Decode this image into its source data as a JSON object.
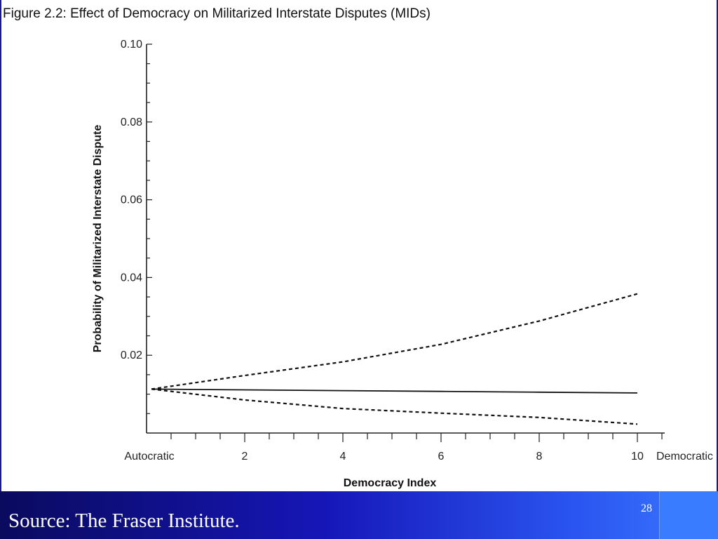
{
  "slide": {
    "source_text": "Source: The Fraser Institute.",
    "page_number": "28"
  },
  "chart_data": {
    "type": "line",
    "title": "Figure 2.2:  Effect of Democracy on Militarized Interstate Disputes (MIDs)",
    "xlabel": "Democracy Index",
    "ylabel": "Probability of Militarized Interstate Dispute",
    "xlim": [
      0,
      10
    ],
    "ylim": [
      0,
      0.1
    ],
    "x_ticks": [
      {
        "value": 0,
        "label": "Autocratic"
      },
      {
        "value": 2,
        "label": "2"
      },
      {
        "value": 4,
        "label": "4"
      },
      {
        "value": 6,
        "label": "6"
      },
      {
        "value": 8,
        "label": "8"
      },
      {
        "value": 10,
        "label": "10"
      }
    ],
    "x_end_label": "Democratic",
    "y_ticks": [
      {
        "value": 0.02,
        "label": "0.02"
      },
      {
        "value": 0.04,
        "label": "0.04"
      },
      {
        "value": 0.06,
        "label": "0.06"
      },
      {
        "value": 0.08,
        "label": "0.08"
      },
      {
        "value": 0.1,
        "label": "0.10"
      }
    ],
    "grid": false,
    "legend": "none",
    "series": [
      {
        "style": "solid",
        "x": [
          0.1,
          2,
          4,
          6,
          8,
          10
        ],
        "y": [
          0.0113,
          0.0111,
          0.0109,
          0.0107,
          0.0105,
          0.0103
        ]
      },
      {
        "style": "dashed",
        "x": [
          0.1,
          2,
          4,
          6,
          8,
          10
        ],
        "y": [
          0.0113,
          0.0148,
          0.0183,
          0.0228,
          0.0288,
          0.0358
        ]
      },
      {
        "style": "dashed",
        "x": [
          0.1,
          2,
          4,
          6,
          8,
          10
        ],
        "y": [
          0.0113,
          0.0085,
          0.0063,
          0.0051,
          0.004,
          0.0023
        ]
      }
    ]
  }
}
